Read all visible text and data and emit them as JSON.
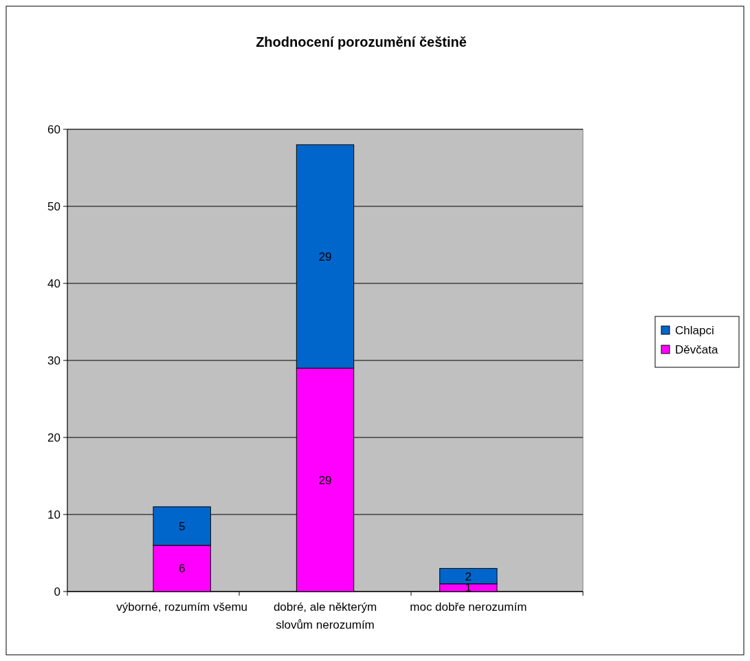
{
  "chart_data": {
    "type": "bar",
    "title": "Zhodnocení porozumění češtině",
    "categories": [
      "výborné, rozumím všemu",
      "dobré, ale některým slovům nerozumím",
      "moc dobře nerozumím"
    ],
    "series": [
      {
        "name": "Děvčata",
        "color": "#ff00ff",
        "values": [
          6,
          29,
          1
        ]
      },
      {
        "name": "Chlapci",
        "color": "#0066cc",
        "values": [
          5,
          29,
          2
        ]
      }
    ],
    "stacked": true,
    "ylim": [
      0,
      60
    ],
    "yticks": [
      0,
      10,
      20,
      30,
      40,
      50,
      60
    ],
    "grid": "y",
    "legend": "right",
    "data_labels": true
  }
}
